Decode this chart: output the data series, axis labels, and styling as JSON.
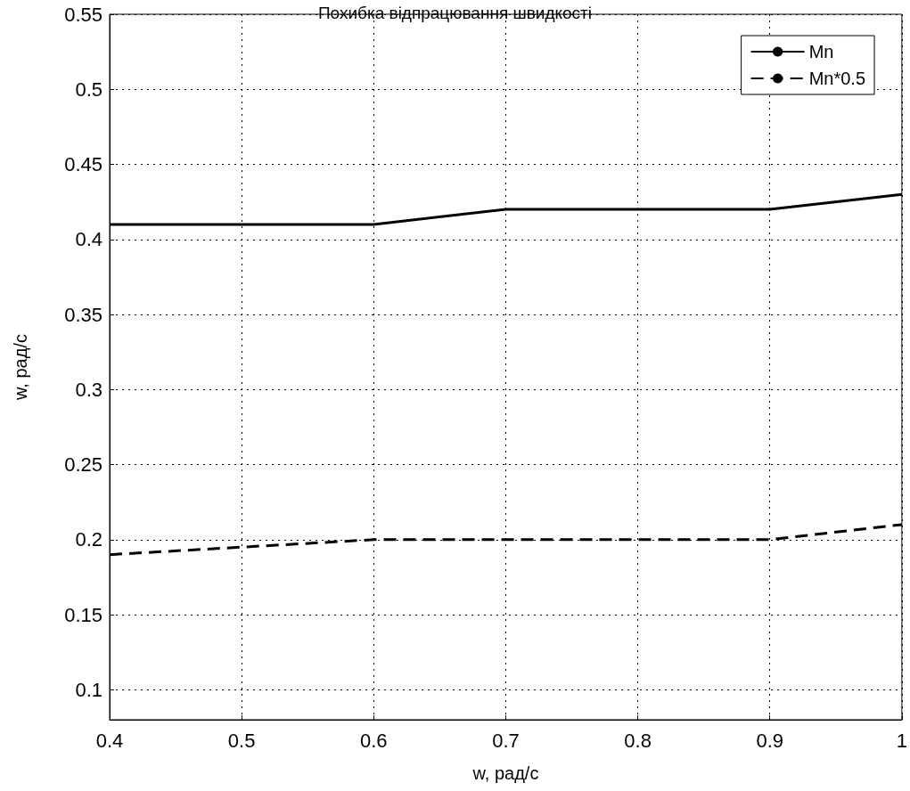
{
  "chart_data": {
    "type": "line",
    "title": "Похибка відпрацювання швидкості",
    "xlabel": "w, рад/с",
    "ylabel": "w, рад/с",
    "x": [
      0.4,
      0.6,
      0.7,
      0.9,
      1
    ],
    "series": [
      {
        "name": "Mn",
        "color": "#000000",
        "line_style": "solid",
        "values": [
          0.41,
          0.41,
          0.42,
          0.42,
          0.43
        ]
      },
      {
        "name": "Mn*0.5",
        "color": "#000000",
        "line_style": "dashed",
        "values": [
          0.19,
          0.2,
          0.2,
          0.2,
          0.21
        ]
      }
    ],
    "xlim": [
      0.4,
      1
    ],
    "xticks": [
      0.4,
      0.5,
      0.6,
      0.7,
      0.8,
      0.9,
      1
    ],
    "ylim": [
      0.08,
      0.55
    ],
    "yticks": [
      0.1,
      0.15,
      0.2,
      0.25,
      0.3,
      0.35,
      0.4,
      0.45,
      0.5,
      0.55
    ],
    "grid": true,
    "legend": "top right",
    "marker": "none"
  }
}
